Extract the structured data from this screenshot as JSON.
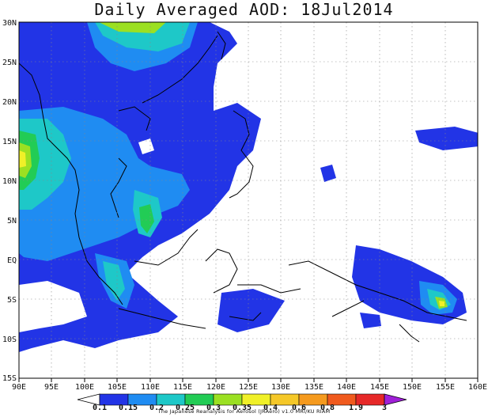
{
  "title": "Daily Averaged AOD: 18Jul2014",
  "credit": "The Japanese Reanalysis for Aerosol (JRAero) v1.0 MRI/KU RIAM",
  "lon_labels": [
    "90E",
    "95E",
    "100E",
    "105E",
    "110E",
    "115E",
    "120E",
    "125E",
    "130E",
    "135E",
    "140E",
    "145E",
    "150E",
    "155E",
    "160E"
  ],
  "lat_labels": [
    "30N",
    "25N",
    "20N",
    "15N",
    "10N",
    "5N",
    "EQ",
    "5S",
    "10S",
    "15S"
  ],
  "colorbar": {
    "labels": [
      "0.1",
      "0.15",
      "0.2",
      "0.25",
      "0.3",
      "0.35",
      "0.4",
      "0.6",
      "0.8",
      "1.9",
      "3"
    ],
    "colors": [
      "#2234e6",
      "#1f8cf2",
      "#1ec8c8",
      "#22cc55",
      "#9be022",
      "#f0f028",
      "#f5c828",
      "#f59a1e",
      "#f05a1e",
      "#e62828"
    ]
  },
  "legend_colors": {
    "below_min": "#ffffff",
    "max_arrow": "#a020d8"
  }
}
